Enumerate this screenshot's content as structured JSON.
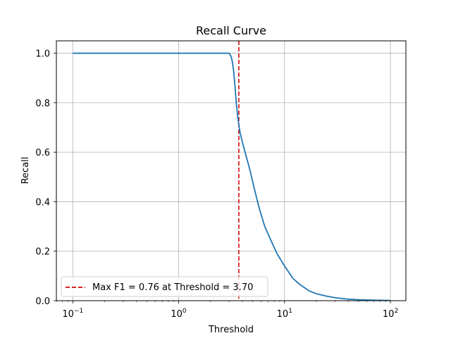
{
  "chart_data": {
    "type": "line",
    "title": "Recall Curve",
    "xlabel": "Threshold",
    "ylabel": "Recall",
    "xscale": "log",
    "xlim": [
      0.07,
      140
    ],
    "ylim": [
      0.0,
      1.05
    ],
    "grid": true,
    "legend_position": "lower-left",
    "x_ticks": [
      {
        "value": 0.1,
        "base": "10",
        "exp": "−1"
      },
      {
        "value": 1,
        "base": "10",
        "exp": "0"
      },
      {
        "value": 10,
        "base": "10",
        "exp": "1"
      },
      {
        "value": 100,
        "base": "10",
        "exp": "2"
      }
    ],
    "y_ticks": [
      "0.0",
      "0.2",
      "0.4",
      "0.6",
      "0.8",
      "1.0"
    ],
    "series": [
      {
        "color": "#1f77b4",
        "x": [
          0.1,
          0.2,
          0.5,
          1.0,
          2.0,
          2.8,
          3.0,
          3.1,
          3.2,
          3.3,
          3.4,
          3.5,
          3.6,
          3.7,
          3.8,
          4.0,
          4.3,
          4.7,
          5.2,
          5.8,
          6.5,
          7.5,
          8.5,
          10.0,
          12.0,
          14.0,
          17.0,
          20.0,
          25.0,
          30.0,
          40.0,
          50.0,
          70.0,
          100.0
        ],
        "y": [
          1.0,
          1.0,
          1.0,
          1.0,
          1.0,
          1.0,
          1.0,
          0.99,
          0.97,
          0.93,
          0.87,
          0.8,
          0.75,
          0.71,
          0.68,
          0.64,
          0.59,
          0.53,
          0.45,
          0.37,
          0.3,
          0.24,
          0.19,
          0.14,
          0.09,
          0.065,
          0.04,
          0.028,
          0.018,
          0.012,
          0.006,
          0.004,
          0.002,
          0.001
        ]
      }
    ],
    "threshold_line": {
      "x": 3.7,
      "color": "#d62728",
      "label": "Max F1 = 0.76 at Threshold = 3.70"
    }
  }
}
